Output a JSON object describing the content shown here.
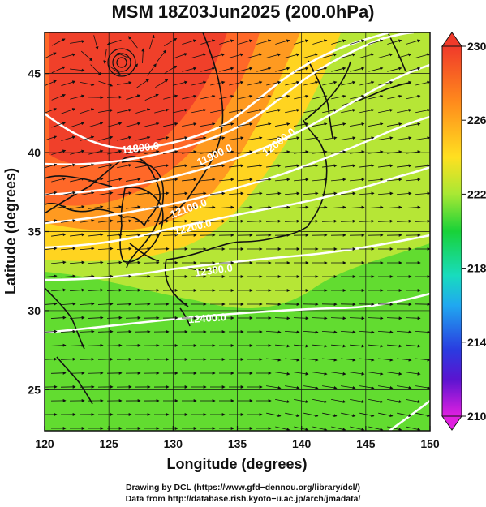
{
  "title": "MSM 18Z03Jun2025 (200.0hPa)",
  "axes": {
    "xlabel": "Longitude (degrees)",
    "ylabel": "Latitude  (degrees)",
    "xticks": [
      "120",
      "125",
      "130",
      "135",
      "140",
      "145",
      "150"
    ],
    "yticks": [
      "25",
      "30",
      "35",
      "40",
      "45"
    ],
    "xlim": [
      120,
      150
    ],
    "ylim": [
      22.4,
      47.6
    ]
  },
  "colorbar": {
    "min": 210,
    "max": 230,
    "tick_labels": [
      "230",
      "226",
      "222",
      "218",
      "214",
      "210"
    ],
    "palette": "magenta-blue-cyan-green-yellow-orange-red"
  },
  "contours": [
    {
      "label": "11800.0"
    },
    {
      "label": "11900.0"
    },
    {
      "label": "12000.0"
    },
    {
      "label": "12100.0"
    },
    {
      "label": "12200.0"
    },
    {
      "label": "12300.0"
    },
    {
      "label": "12400.0"
    }
  ],
  "low_center": {
    "lon": 126,
    "lat": 45.7
  },
  "credits": {
    "line1": "Drawing by DCL (https://www.gfd−dennou.org/library/dcl/)",
    "line2": "Data from http://database.rish.kyoto−u.ac.jp/arch/jmadata/"
  }
}
